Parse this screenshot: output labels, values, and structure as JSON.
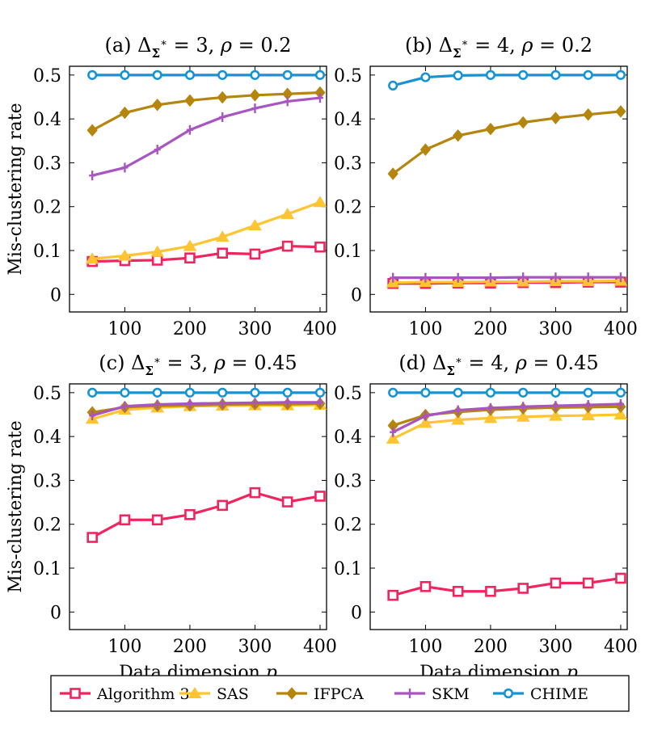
{
  "figure": {
    "ylabel": "Mis-clustering rate",
    "xlabel": "Data dimension p",
    "legend": [
      "Algorithm 3",
      "SAS",
      "IFPCA",
      "SKM",
      "CHIME"
    ]
  },
  "series_style": [
    {
      "name": "Algorithm 3",
      "color": "#F0245F",
      "marker": "square"
    },
    {
      "name": "SAS",
      "color": "#FFC431",
      "marker": "triangle"
    },
    {
      "name": "IFPCA",
      "color": "#B5850D",
      "marker": "diamond"
    },
    {
      "name": "SKM",
      "color": "#A855C2",
      "marker": "plus"
    },
    {
      "name": "CHIME",
      "color": "#1793D1",
      "marker": "circle"
    }
  ],
  "chart_data": [
    {
      "type": "line",
      "title": "(a) Δ_Σ* = 3, ρ = 0.2",
      "title_prefix": "(a) ",
      "title_delta": "Δ",
      "title_sub": "Σ",
      "title_sup": "∗",
      "title_mid": " = 3, ",
      "title_rho": "ρ",
      "title_end": " = 0.2",
      "xlabel": "",
      "ylabel": "Mis-clustering rate",
      "x": [
        50,
        100,
        150,
        200,
        250,
        300,
        350,
        400
      ],
      "xticks": [
        100,
        200,
        300,
        400
      ],
      "yticks": [
        "0",
        "0.1",
        "0.2",
        "0.3",
        "0.4",
        "0.5"
      ],
      "ylim": [
        -0.04,
        0.52
      ],
      "xlim": [
        15,
        410
      ],
      "series": [
        {
          "name": "Algorithm 3",
          "values": [
            0.075,
            0.077,
            0.078,
            0.083,
            0.094,
            0.092,
            0.11,
            0.108
          ]
        },
        {
          "name": "SAS",
          "values": [
            0.081,
            0.088,
            0.097,
            0.11,
            0.131,
            0.157,
            0.183,
            0.21
          ]
        },
        {
          "name": "IFPCA",
          "values": [
            0.374,
            0.414,
            0.432,
            0.442,
            0.449,
            0.454,
            0.457,
            0.46
          ]
        },
        {
          "name": "SKM",
          "values": [
            0.271,
            0.289,
            0.33,
            0.375,
            0.404,
            0.424,
            0.44,
            0.448
          ]
        },
        {
          "name": "CHIME",
          "values": [
            0.5,
            0.5,
            0.5,
            0.5,
            0.5,
            0.5,
            0.5,
            0.5
          ]
        }
      ]
    },
    {
      "type": "line",
      "title": "(b) Δ_Σ* = 4, ρ = 0.2",
      "title_prefix": "(b) ",
      "title_delta": "Δ",
      "title_sub": "Σ",
      "title_sup": "∗",
      "title_mid": " = 4, ",
      "title_rho": "ρ",
      "title_end": " = 0.2",
      "xlabel": "",
      "ylabel": "",
      "x": [
        50,
        100,
        150,
        200,
        250,
        300,
        350,
        400
      ],
      "xticks": [
        100,
        200,
        300,
        400
      ],
      "yticks": [
        "0",
        "0.1",
        "0.2",
        "0.3",
        "0.4",
        "0.5"
      ],
      "ylim": [
        -0.04,
        0.52
      ],
      "xlim": [
        15,
        410
      ],
      "series": [
        {
          "name": "Algorithm 3",
          "values": [
            0.025,
            0.025,
            0.026,
            0.026,
            0.027,
            0.027,
            0.028,
            0.028
          ]
        },
        {
          "name": "SAS",
          "values": [
            0.027,
            0.028,
            0.028,
            0.029,
            0.029,
            0.03,
            0.03,
            0.031
          ]
        },
        {
          "name": "IFPCA",
          "values": [
            0.275,
            0.33,
            0.362,
            0.377,
            0.392,
            0.402,
            0.41,
            0.417
          ]
        },
        {
          "name": "SKM",
          "values": [
            0.038,
            0.038,
            0.038,
            0.038,
            0.039,
            0.039,
            0.039,
            0.039
          ]
        },
        {
          "name": "CHIME",
          "values": [
            0.476,
            0.495,
            0.499,
            0.5,
            0.5,
            0.5,
            0.5,
            0.5
          ]
        }
      ]
    },
    {
      "type": "line",
      "title": "(c) Δ_Σ* = 3, ρ = 0.45",
      "title_prefix": "(c) ",
      "title_delta": "Δ",
      "title_sub": "Σ",
      "title_sup": "∗",
      "title_mid": " = 3, ",
      "title_rho": "ρ",
      "title_end": " = 0.45",
      "xlabel": "Data dimension p",
      "ylabel": "Mis-clustering rate",
      "x": [
        50,
        100,
        150,
        200,
        250,
        300,
        350,
        400
      ],
      "xticks": [
        100,
        200,
        300,
        400
      ],
      "yticks": [
        "0",
        "0.1",
        "0.2",
        "0.3",
        "0.4",
        "0.5"
      ],
      "ylim": [
        -0.04,
        0.52
      ],
      "xlim": [
        15,
        410
      ],
      "series": [
        {
          "name": "Algorithm 3",
          "values": [
            0.17,
            0.21,
            0.21,
            0.222,
            0.243,
            0.272,
            0.251,
            0.264
          ]
        },
        {
          "name": "SAS",
          "values": [
            0.44,
            0.461,
            0.466,
            0.469,
            0.47,
            0.471,
            0.471,
            0.472
          ]
        },
        {
          "name": "IFPCA",
          "values": [
            0.455,
            0.467,
            0.47,
            0.471,
            0.473,
            0.474,
            0.474,
            0.475
          ]
        },
        {
          "name": "SKM",
          "values": [
            0.448,
            0.469,
            0.473,
            0.475,
            0.476,
            0.477,
            0.478,
            0.478
          ]
        },
        {
          "name": "CHIME",
          "values": [
            0.5,
            0.5,
            0.5,
            0.5,
            0.5,
            0.5,
            0.5,
            0.5
          ]
        }
      ]
    },
    {
      "type": "line",
      "title": "(d) Δ_Σ* = 4, ρ = 0.45",
      "title_prefix": "(d) ",
      "title_delta": "Δ",
      "title_sub": "Σ",
      "title_sup": "∗",
      "title_mid": " = 4, ",
      "title_rho": "ρ",
      "title_end": " = 0.45",
      "xlabel": "Data dimension p",
      "ylabel": "",
      "x": [
        50,
        100,
        150,
        200,
        250,
        300,
        350,
        400
      ],
      "xticks": [
        100,
        200,
        300,
        400
      ],
      "yticks": [
        "0",
        "0.1",
        "0.2",
        "0.3",
        "0.4",
        "0.5"
      ],
      "ylim": [
        -0.04,
        0.52
      ],
      "xlim": [
        15,
        410
      ],
      "series": [
        {
          "name": "Algorithm 3",
          "values": [
            0.038,
            0.058,
            0.047,
            0.047,
            0.054,
            0.066,
            0.066,
            0.077
          ]
        },
        {
          "name": "SAS",
          "values": [
            0.395,
            0.431,
            0.438,
            0.442,
            0.445,
            0.447,
            0.448,
            0.45
          ]
        },
        {
          "name": "IFPCA",
          "values": [
            0.425,
            0.449,
            0.456,
            0.461,
            0.464,
            0.466,
            0.467,
            0.468
          ]
        },
        {
          "name": "SKM",
          "values": [
            0.41,
            0.447,
            0.46,
            0.465,
            0.468,
            0.47,
            0.472,
            0.474
          ]
        },
        {
          "name": "CHIME",
          "values": [
            0.5,
            0.5,
            0.5,
            0.5,
            0.5,
            0.5,
            0.5,
            0.5
          ]
        }
      ]
    }
  ]
}
